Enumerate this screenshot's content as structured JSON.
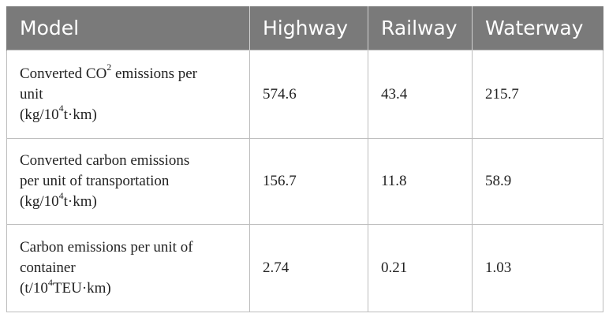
{
  "table": {
    "headers": [
      "Model",
      "Highway",
      "Railway",
      "Waterway"
    ],
    "rows": [
      {
        "model": {
          "line1_pre": "Converted CO",
          "line1_sup": "2",
          "line1_post": " emissions per",
          "line2": "unit",
          "unit_pre": "(kg/10",
          "unit_sup": "4",
          "unit_post": "t·km)"
        },
        "highway": "574.6",
        "railway": "43.4",
        "waterway": "215.7"
      },
      {
        "model": {
          "line1": "Converted carbon emissions",
          "line2": "per unit of transportation",
          "unit_pre": "(kg/10",
          "unit_sup": "4",
          "unit_post": "t·km)"
        },
        "highway": "156.7",
        "railway": "11.8",
        "waterway": "58.9"
      },
      {
        "model": {
          "line1": "Carbon emissions per unit of",
          "line2": "container",
          "unit_pre": "(t/10",
          "unit_sup": "4",
          "unit_post": "TEU·km)"
        },
        "highway": "2.74",
        "railway": "0.21",
        "waterway": "1.03"
      }
    ]
  }
}
